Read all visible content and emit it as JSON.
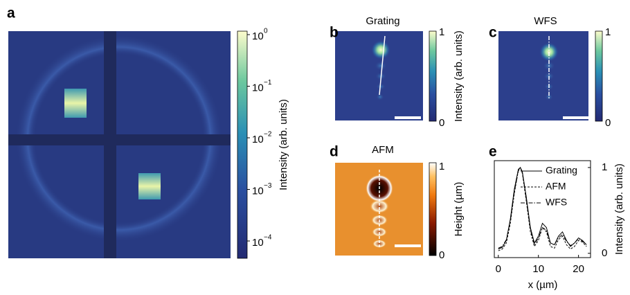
{
  "panels": {
    "a": {
      "label": "a",
      "colorbar": {
        "title": "Intensity (arb. units)",
        "ticks": [
          {
            "base": "10",
            "exp": "0"
          },
          {
            "base": "10",
            "exp": "−1"
          },
          {
            "base": "10",
            "exp": "−2"
          },
          {
            "base": "10",
            "exp": "−3"
          },
          {
            "base": "10",
            "exp": "−4"
          }
        ]
      }
    },
    "b": {
      "label": "b",
      "title": "Grating",
      "colorbar": {
        "title": "Intensity (arb. units)",
        "ticks": [
          1,
          0
        ]
      }
    },
    "c": {
      "label": "c",
      "title": "WFS",
      "colorbar": {
        "ticks": [
          1,
          0
        ]
      }
    },
    "d": {
      "label": "d",
      "title": "AFM",
      "colorbar": {
        "title": "Height (µm)",
        "ticks": [
          1,
          0
        ]
      }
    },
    "e": {
      "label": "e"
    }
  },
  "chart_data": {
    "type": "line",
    "xlabel": "x (µm)",
    "ylabel": "Intensity (arb. units)",
    "yaxis_side": "right",
    "x": [
      0,
      1,
      2,
      3,
      4,
      5,
      5.5,
      6,
      7,
      8,
      9,
      10,
      11,
      12,
      13,
      14,
      15,
      16,
      17,
      18,
      19,
      20,
      21,
      22
    ],
    "xlim": [
      -1,
      23
    ],
    "xticks": [
      0,
      10,
      20
    ],
    "ylim": [
      -0.05,
      1.08
    ],
    "yticks": [
      0,
      1
    ],
    "series": [
      {
        "name": "Grating",
        "color": "#000000",
        "dash": "none",
        "values": [
          0.05,
          0.07,
          0.15,
          0.4,
          0.75,
          0.98,
          1.0,
          0.95,
          0.65,
          0.3,
          0.12,
          0.2,
          0.35,
          0.3,
          0.12,
          0.1,
          0.2,
          0.25,
          0.15,
          0.08,
          0.12,
          0.18,
          0.15,
          0.1
        ]
      },
      {
        "name": "AFM",
        "color": "#000000",
        "dash": "3 2",
        "values": [
          0.03,
          0.05,
          0.12,
          0.35,
          0.7,
          0.97,
          1.0,
          0.93,
          0.6,
          0.25,
          0.08,
          0.15,
          0.3,
          0.25,
          0.08,
          0.06,
          0.16,
          0.2,
          0.1,
          0.05,
          0.08,
          0.15,
          0.13,
          0.08
        ]
      },
      {
        "name": "WFS",
        "color": "#000000",
        "dash": "6 2 1.5 2",
        "values": [
          0.06,
          0.08,
          0.16,
          0.38,
          0.72,
          0.96,
          1.0,
          0.94,
          0.62,
          0.28,
          0.1,
          0.18,
          0.3,
          0.27,
          0.12,
          0.1,
          0.18,
          0.22,
          0.14,
          0.09,
          0.12,
          0.17,
          0.14,
          0.1
        ]
      }
    ]
  }
}
